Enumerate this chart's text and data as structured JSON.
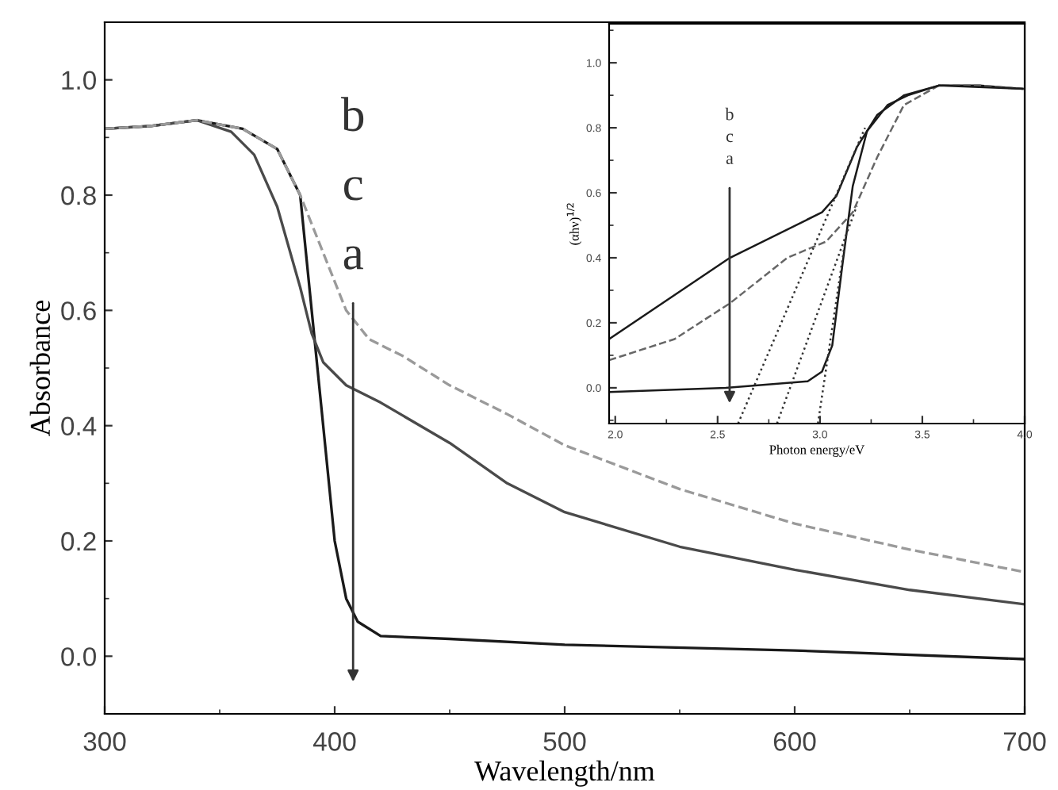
{
  "chart_data": [
    {
      "type": "line",
      "xlabel": "Wavelength/nm",
      "ylabel": "Absorbance",
      "xlim": [
        300,
        700
      ],
      "xticks": [
        300,
        400,
        500,
        600,
        700
      ],
      "ylim": [
        -0.1,
        1.1
      ],
      "yticks": [
        {
          "value": 0,
          "label": "0.0"
        },
        {
          "value": 0.2,
          "label": "0.2"
        },
        {
          "value": 0.4,
          "label": "0.4"
        },
        {
          "value": 0.6,
          "label": "0.6"
        },
        {
          "value": 0.8,
          "label": "0.8"
        },
        {
          "value": 1,
          "label": "1.0"
        }
      ],
      "annotations": [
        "b",
        "c",
        "a"
      ],
      "series": [
        {
          "color": "#1a1a1a",
          "line_style": "solid",
          "x": [
            300,
            320,
            340,
            360,
            375,
            385,
            390,
            395,
            400,
            405,
            410,
            420,
            450,
            500,
            600,
            700
          ],
          "values": [
            0.915,
            0.92,
            0.93,
            0.915,
            0.88,
            0.8,
            0.6,
            0.4,
            0.2,
            0.1,
            0.06,
            0.035,
            0.03,
            0.02,
            0.01,
            -0.005
          ]
        },
        {
          "color": "#4a4a4a",
          "line_style": "solid",
          "x": [
            300,
            320,
            340,
            355,
            365,
            375,
            385,
            390,
            395,
            405,
            420,
            450,
            475,
            500,
            550,
            600,
            650,
            700
          ],
          "values": [
            0.915,
            0.92,
            0.93,
            0.91,
            0.87,
            0.78,
            0.64,
            0.56,
            0.51,
            0.47,
            0.44,
            0.37,
            0.3,
            0.25,
            0.19,
            0.15,
            0.115,
            0.09
          ]
        },
        {
          "color": "#9a9a9a",
          "line_style": "dashed",
          "x": [
            300,
            320,
            340,
            360,
            375,
            385,
            395,
            405,
            415,
            430,
            450,
            475,
            500,
            550,
            600,
            650,
            700
          ],
          "values": [
            0.915,
            0.92,
            0.93,
            0.915,
            0.88,
            0.8,
            0.7,
            0.6,
            0.55,
            0.52,
            0.47,
            0.42,
            0.366,
            0.29,
            0.23,
            0.185,
            0.146
          ]
        }
      ]
    },
    {
      "type": "line",
      "xlabel": "Photon energy/eV",
      "ylabel": "(αhν)$^{1/2}$",
      "xlim": [
        1.97,
        4.0
      ],
      "xticks": [
        {
          "value": 2,
          "label": "2.0"
        },
        {
          "value": 2.5,
          "label": "2.5"
        },
        {
          "value": 3,
          "label": "3.0"
        },
        {
          "value": 3.5,
          "label": "3.5"
        },
        {
          "value": 4,
          "label": "4.0"
        }
      ],
      "ylim": [
        -0.11,
        1.12
      ],
      "yticks": [
        {
          "value": 0,
          "label": "0.0"
        },
        {
          "value": 0.2,
          "label": "0.2"
        },
        {
          "value": 0.4,
          "label": "0.4"
        },
        {
          "value": 0.6,
          "label": "0.6"
        },
        {
          "value": 0.8,
          "label": "0.8"
        },
        {
          "value": 1,
          "label": "1.0"
        }
      ],
      "annotations": [
        "b",
        "c",
        "a"
      ],
      "series": [
        {
          "color": "#1a1a1a",
          "line_style": "solid",
          "x": [
            1.97,
            2.56,
            3.01,
            3.08,
            3.18,
            3.28,
            3.41,
            3.58,
            3.78,
            3.99
          ],
          "values": [
            0.15,
            0.4,
            0.54,
            0.59,
            0.74,
            0.84,
            0.9,
            0.93,
            0.93,
            0.92
          ]
        },
        {
          "color": "#666666",
          "line_style": "dashed",
          "x": [
            1.97,
            2.29,
            2.56,
            2.84,
            3.03,
            3.16,
            3.28,
            3.41,
            3.58,
            3.78,
            3.99
          ],
          "values": [
            0.085,
            0.15,
            0.26,
            0.4,
            0.45,
            0.54,
            0.71,
            0.87,
            0.93,
            0.93,
            0.92
          ]
        },
        {
          "color": "#1a1a1a",
          "line_style": "solid",
          "x": [
            1.97,
            2.54,
            2.94,
            3.01,
            3.06,
            3.11,
            3.16,
            3.23,
            3.33,
            3.43,
            3.58,
            3.99
          ],
          "values": [
            -0.013,
            0.0,
            0.02,
            0.05,
            0.13,
            0.38,
            0.62,
            0.79,
            0.87,
            0.9,
            0.93,
            0.92
          ]
        },
        {
          "color": "#333333",
          "line_style": "dotted",
          "x": [
            2.6,
            3.22
          ],
          "values": [
            -0.11,
            0.8
          ]
        },
        {
          "color": "#333333",
          "line_style": "dotted",
          "x": [
            2.79,
            3.18
          ],
          "values": [
            -0.11,
            0.56
          ]
        },
        {
          "color": "#333333",
          "line_style": "dotted",
          "x": [
            2.99,
            3.13
          ],
          "values": [
            -0.11,
            0.48
          ]
        }
      ]
    }
  ]
}
